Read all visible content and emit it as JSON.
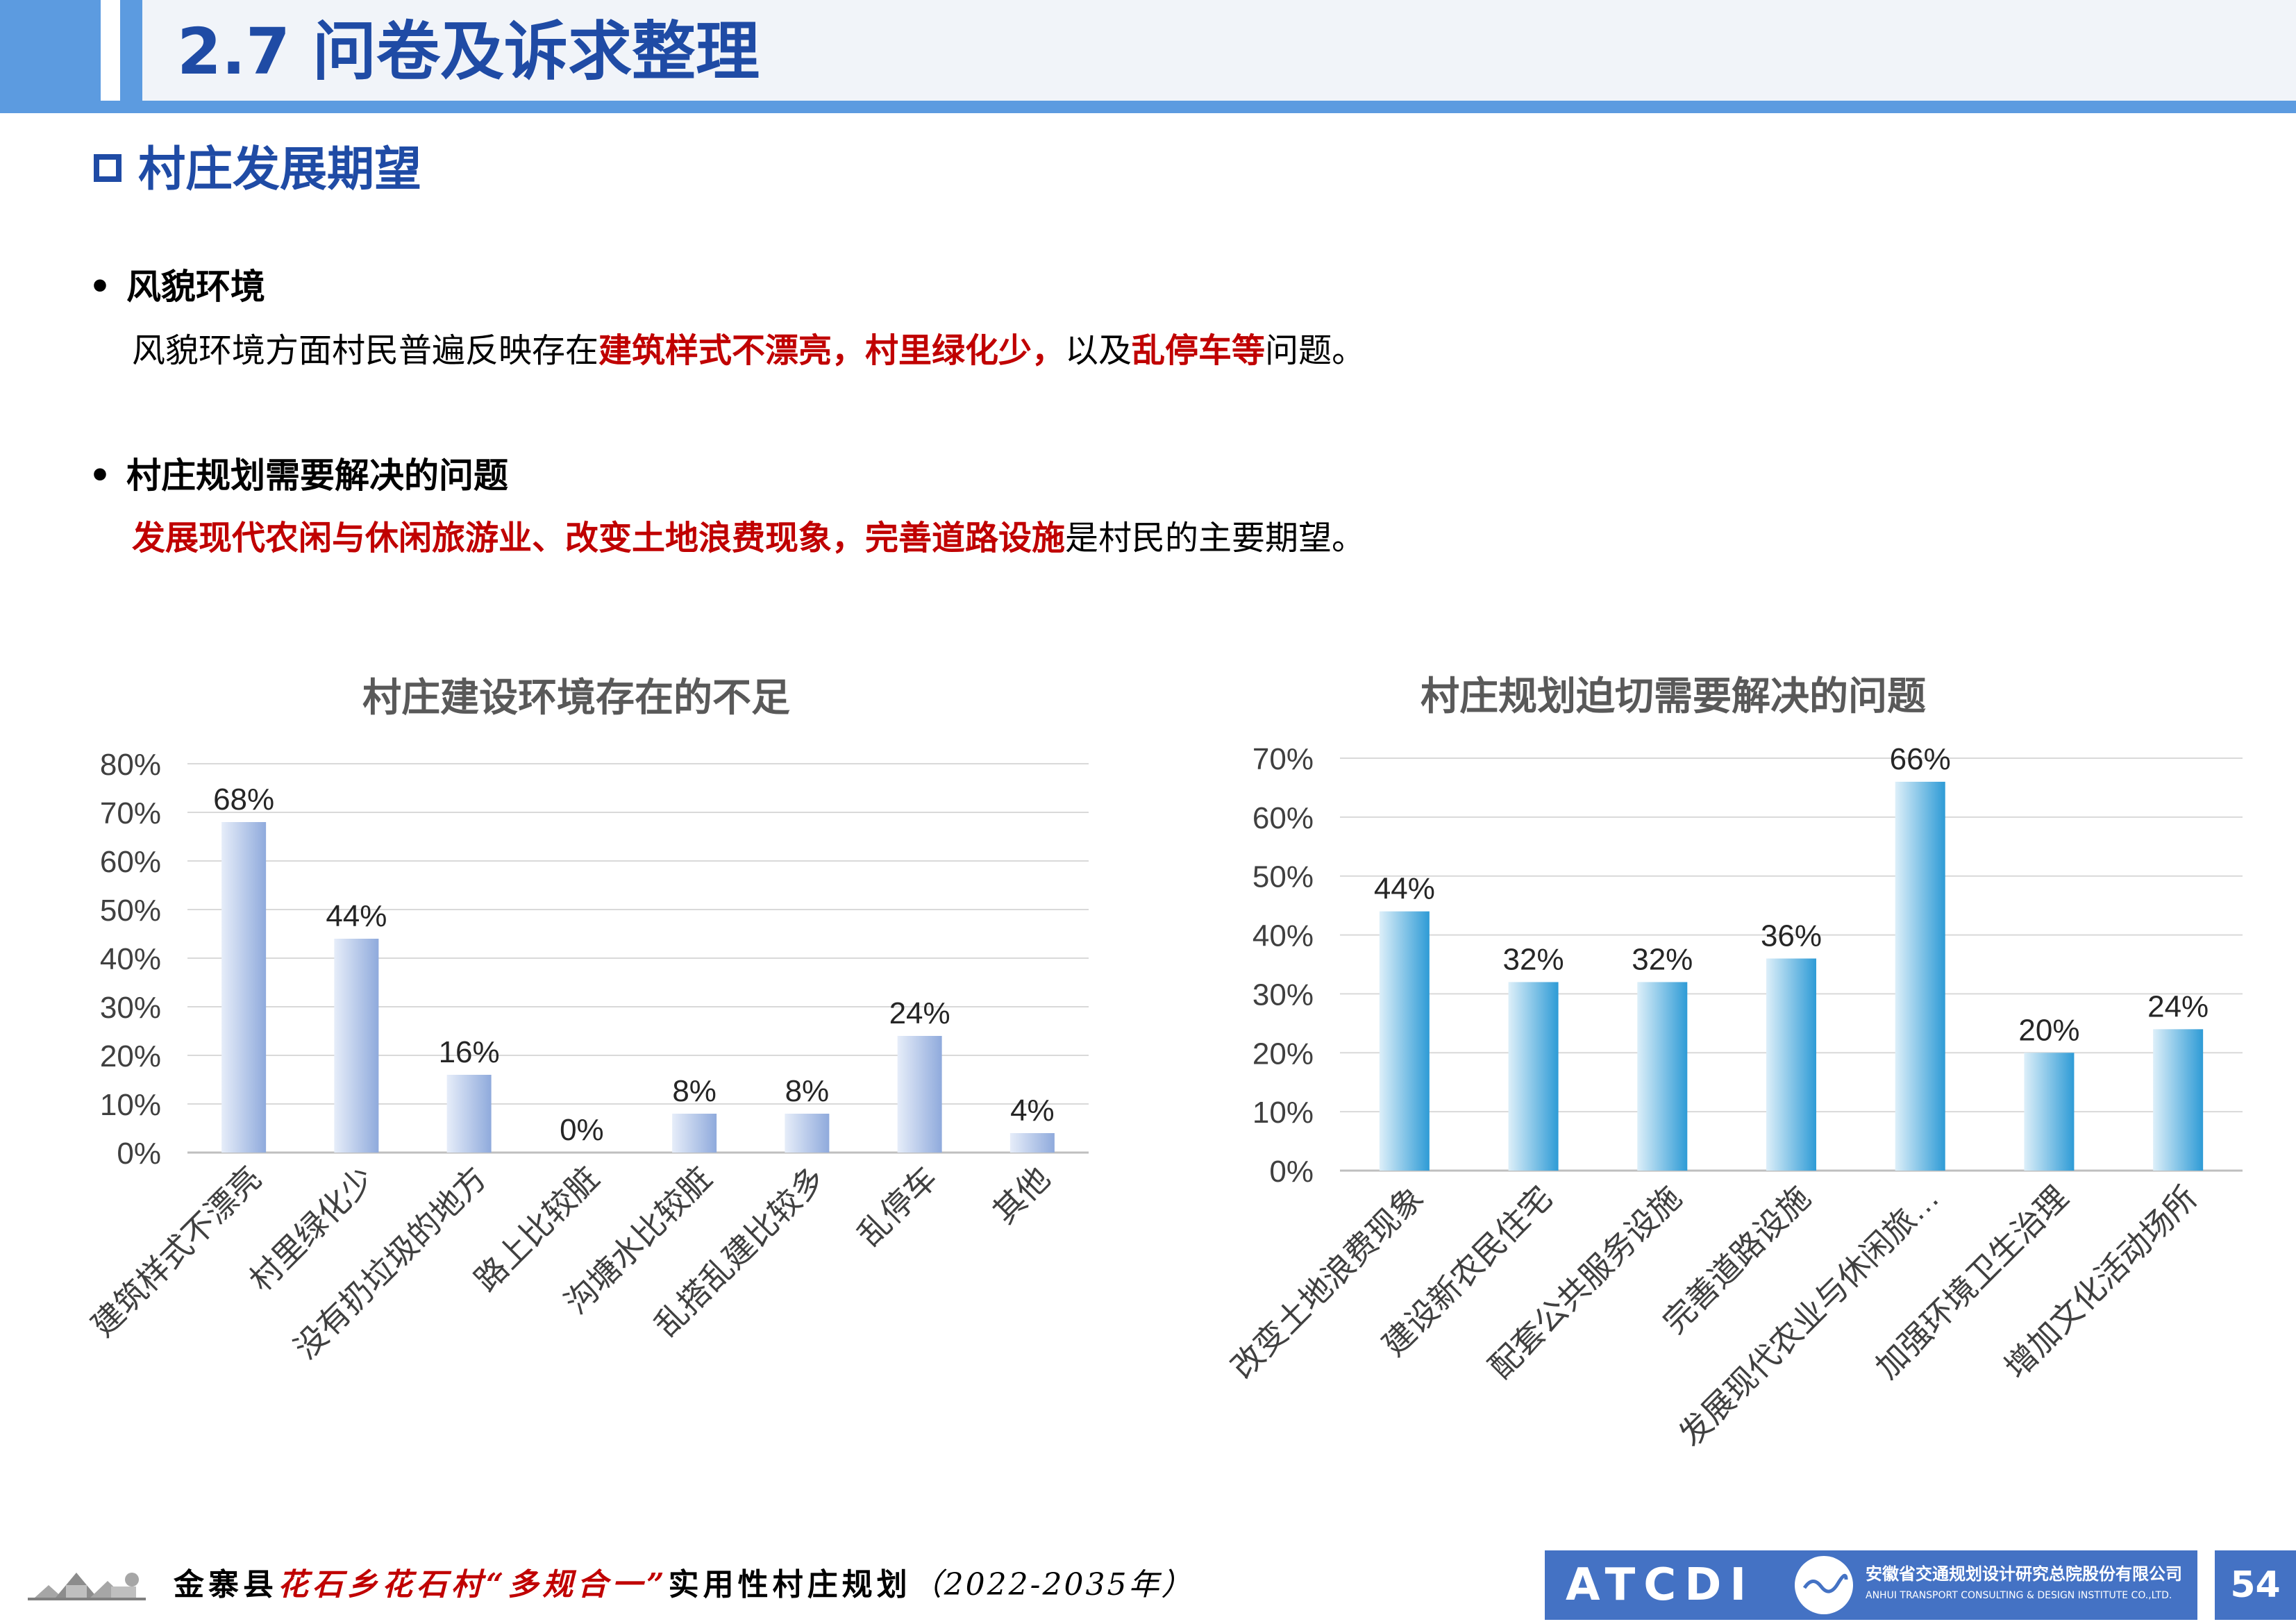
{
  "header": {
    "title": "2.7 问卷及诉求整理"
  },
  "section": {
    "title": "村庄发展期望"
  },
  "bullets": [
    {
      "dot": "•",
      "heading": "风貌环境",
      "text_parts": [
        "风貌环境方面村民普遍反映存在",
        "建筑样式不漂亮，村里绿化少，",
        "以及",
        "乱停车等",
        "问题。"
      ]
    },
    {
      "dot": "•",
      "heading": "村庄规划需要解决的问题",
      "text_parts": [
        "发展现代农闲与休闲旅游业、改变土地浪费现象，完善道路设施",
        "是村民的主要期望。"
      ]
    }
  ],
  "chart_data": [
    {
      "type": "bar",
      "title": "村庄建设环境存在的不足",
      "categories": [
        "建筑样式不漂亮",
        "村里绿化少",
        "没有扔垃圾的地方",
        "路上比较脏",
        "沟塘水比较脏",
        "乱搭乱建比较多",
        "乱停车",
        "其他"
      ],
      "values": [
        68,
        44,
        16,
        0,
        8,
        8,
        24,
        4
      ],
      "data_labels": [
        "68%",
        "44%",
        "16%",
        "0%",
        "8%",
        "8%",
        "24%",
        "4%"
      ],
      "ylim": [
        0,
        80
      ],
      "yticks": [
        "0%",
        "10%",
        "20%",
        "30%",
        "40%",
        "50%",
        "60%",
        "70%",
        "80%"
      ],
      "grid": true,
      "bar_color": "#8FAADC"
    },
    {
      "type": "bar",
      "title": "村庄规划迫切需要解决的问题",
      "categories": [
        "改变土地浪费现象",
        "建设新农民住宅",
        "配套公共服务设施",
        "完善道路设施",
        "发展现代农业与休闲旅…",
        "加强环境卫生治理",
        "增加文化活动场所"
      ],
      "values": [
        44,
        32,
        32,
        36,
        66,
        20,
        24
      ],
      "data_labels": [
        "44%",
        "32%",
        "32%",
        "36%",
        "66%",
        "20%",
        "24%"
      ],
      "ylim": [
        0,
        70
      ],
      "yticks": [
        "0%",
        "10%",
        "20%",
        "30%",
        "40%",
        "50%",
        "60%",
        "70%"
      ],
      "grid": true,
      "bar_color": "#2E9BD6"
    }
  ],
  "footer": {
    "county": "金寨县",
    "place": "花石乡花石村",
    "quote": "“多规合一”",
    "plan": "实用性村庄规划",
    "years": "（2022-2035年）",
    "logo_text": "ATCDI",
    "org_cn": "安徽省交通规划设计研究总院股份有限公司",
    "org_en": "ANHUI TRANSPORT CONSULTING & DESIGN INSTITUTE CO.,LTD.",
    "page_number": "54"
  }
}
